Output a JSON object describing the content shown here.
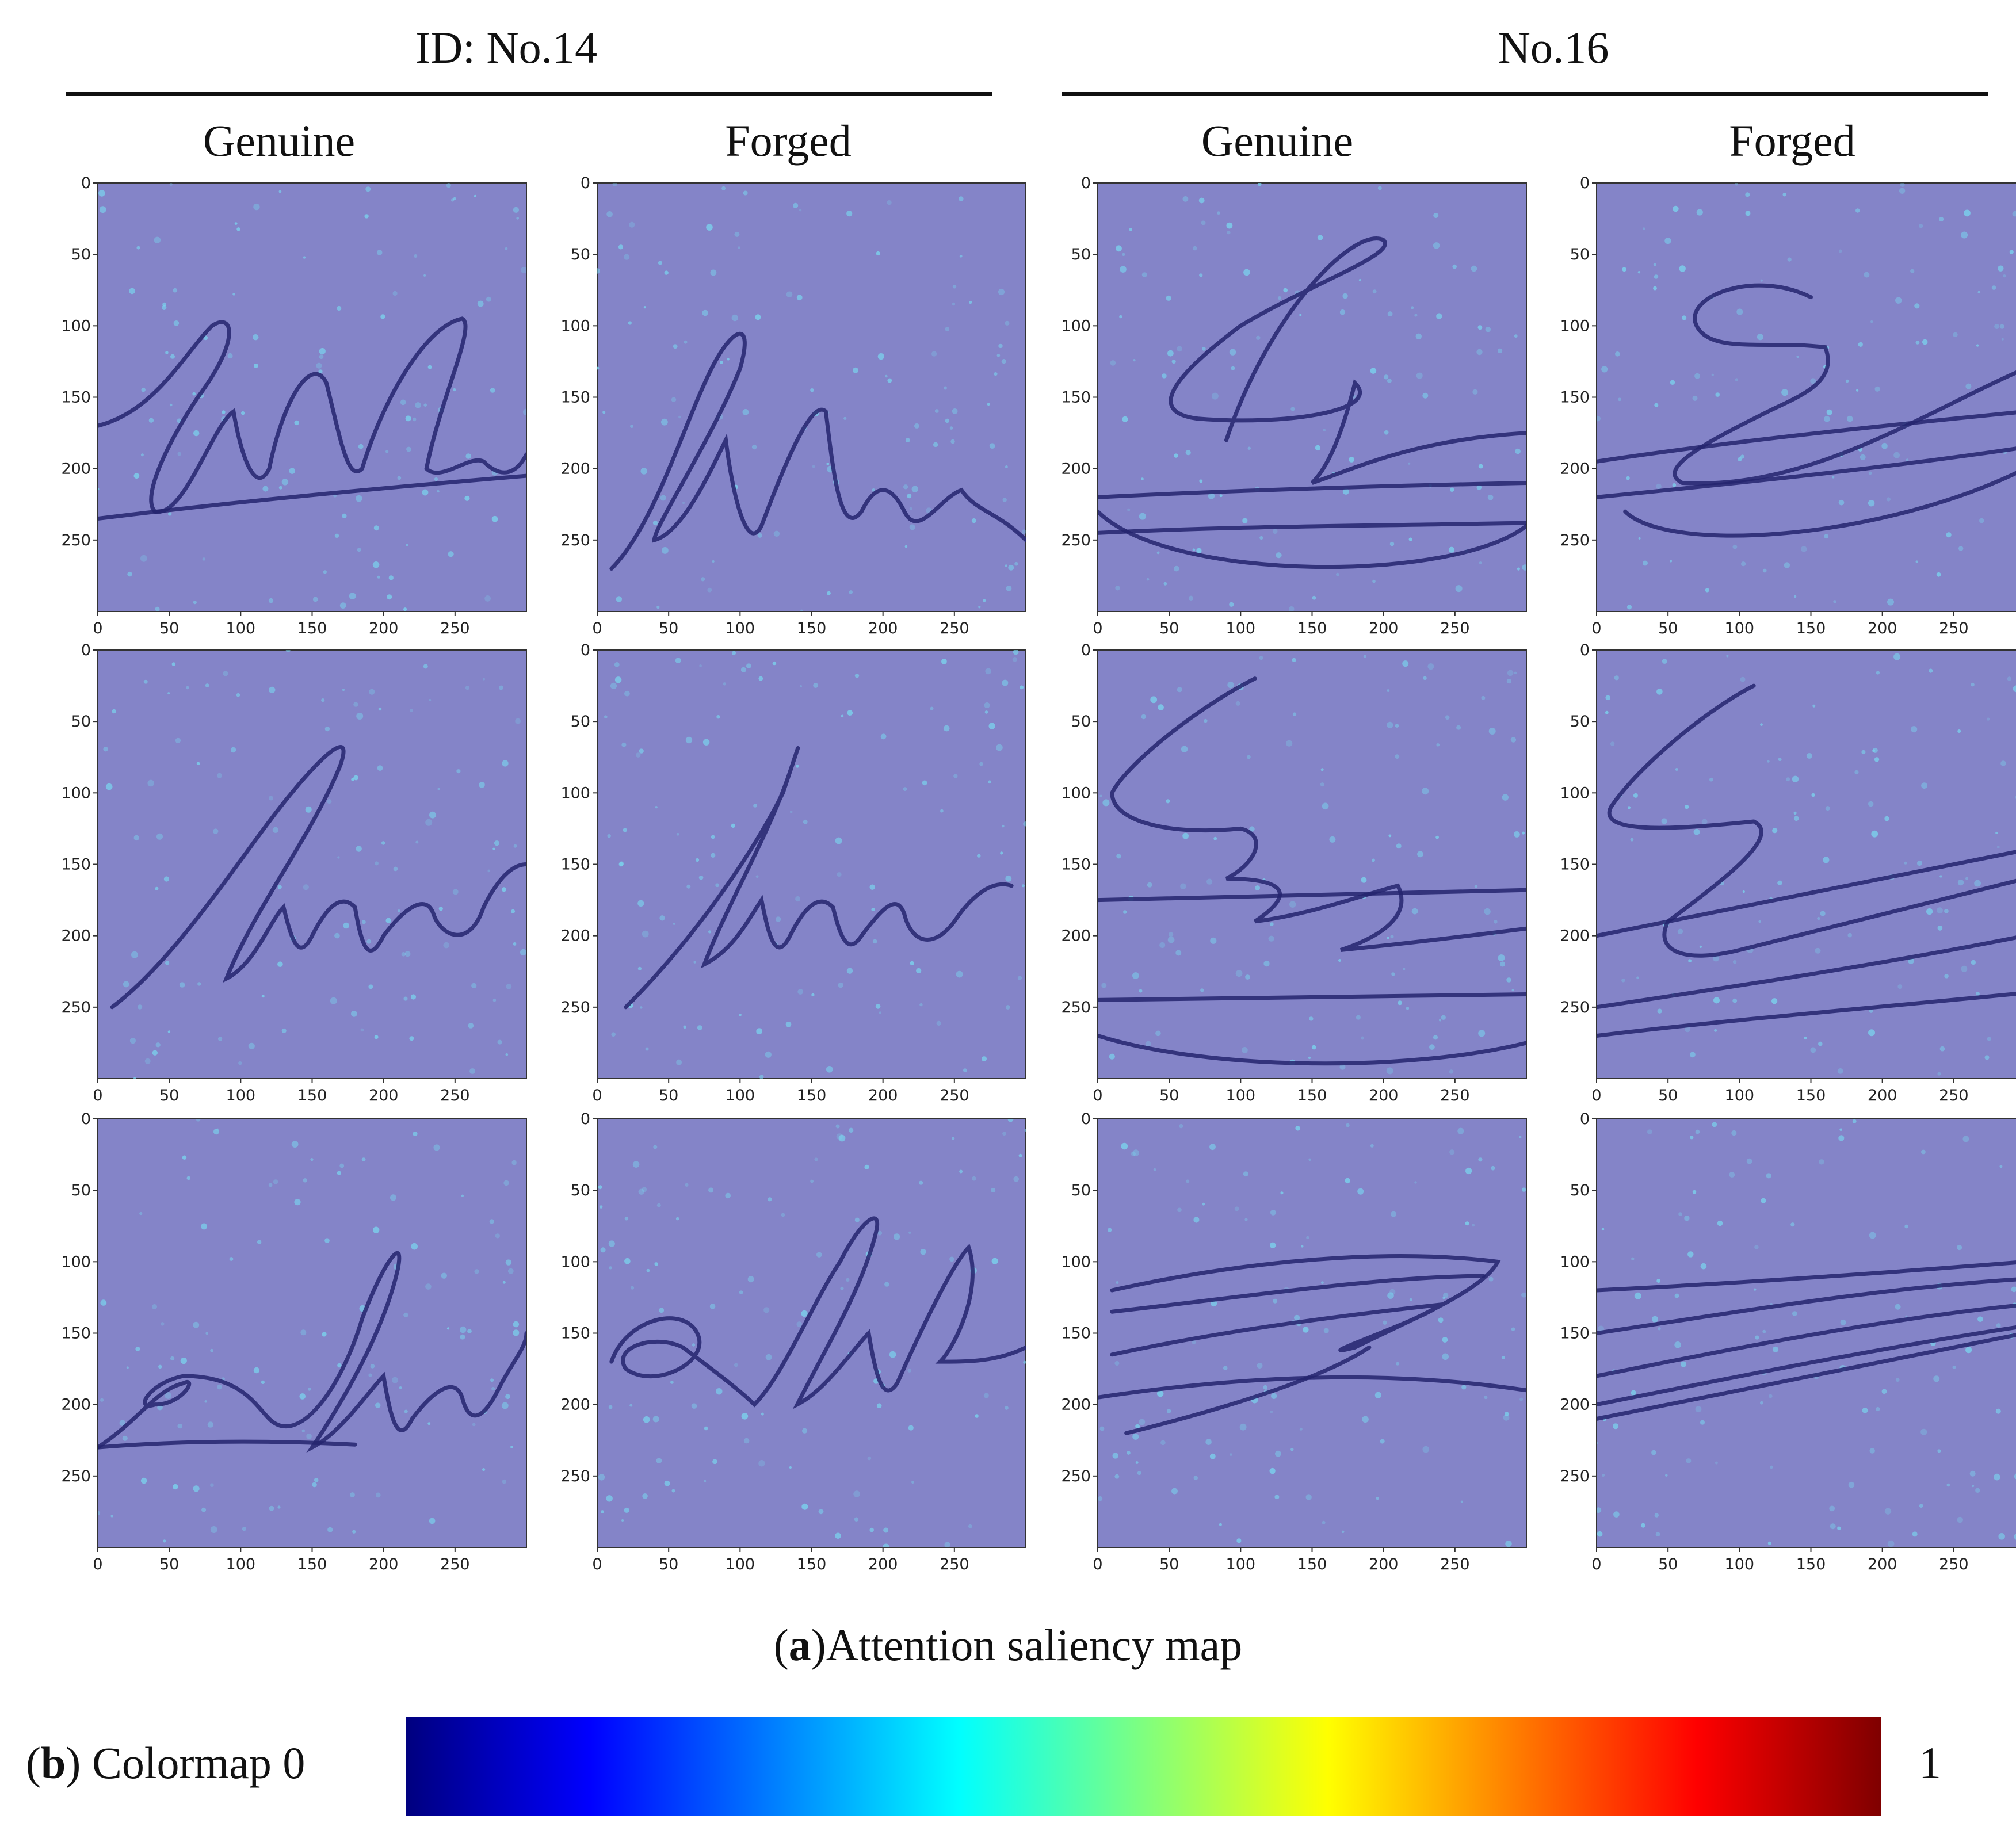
{
  "headers": {
    "id_left": "ID: No.14",
    "id_right": "No.16",
    "columns": [
      "Genuine",
      "Forged",
      "Genuine",
      "Forged"
    ]
  },
  "axes": {
    "ticks_y": [
      "0",
      "50",
      "100",
      "150",
      "200",
      "250"
    ],
    "ticks_x": [
      "0",
      "50",
      "100",
      "150",
      "200",
      "250"
    ]
  },
  "colors": {
    "background_map": "#8484c8",
    "stroke": "#24246e",
    "hotspot": "#7ad8f0",
    "colormap": [
      "#00007f",
      "#0000ff",
      "#007fff",
      "#00ffff",
      "#7fff7f",
      "#ffff00",
      "#ff7f00",
      "#ff0000",
      "#7f0000"
    ]
  },
  "caption_a": {
    "label": "a",
    "text": "Attention saliency map"
  },
  "caption_b": {
    "label": "b",
    "text": "Colormap",
    "min": "0",
    "max": "1"
  }
}
